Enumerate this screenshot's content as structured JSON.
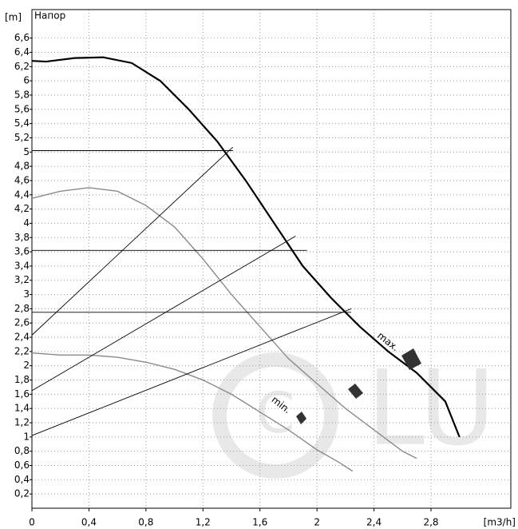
{
  "chart_data": {
    "type": "line",
    "title": "Напор",
    "y_label": "[m]",
    "x_label": "[m3/h]",
    "watermark": "LU",
    "annotations": [
      "max.",
      "min."
    ],
    "xlim": [
      0,
      3.36
    ],
    "ylim": [
      0,
      7
    ],
    "grid": true,
    "xticks": [
      0,
      {
        "value": 0.4,
        "label": "0,4"
      },
      {
        "value": 0.8,
        "label": "0,8"
      },
      {
        "value": 1.2,
        "label": "1,2"
      },
      {
        "value": 1.6,
        "label": "1,6"
      },
      2,
      {
        "value": 2.4,
        "label": "2,4"
      },
      {
        "value": 2.8,
        "label": "2,8"
      }
    ],
    "yticks": [
      {
        "value": 0.2,
        "label": "0,2"
      },
      {
        "value": 0.4,
        "label": "0,4"
      },
      {
        "value": 0.6,
        "label": "0,6"
      },
      {
        "value": 0.8,
        "label": "0,8"
      },
      1,
      {
        "value": 1.2,
        "label": "1,2"
      },
      {
        "value": 1.4,
        "label": "1,4"
      },
      {
        "value": 1.6,
        "label": "1,6"
      },
      {
        "value": 1.8,
        "label": "1,8"
      },
      2,
      {
        "value": 2.2,
        "label": "2,2"
      },
      {
        "value": 2.4,
        "label": "2,4"
      },
      {
        "value": 2.6,
        "label": "2,6"
      },
      {
        "value": 2.8,
        "label": "2,8"
      },
      3,
      {
        "value": 3.2,
        "label": "3,2"
      },
      {
        "value": 3.4,
        "label": "3,4"
      },
      {
        "value": 3.6,
        "label": "3,6"
      },
      {
        "value": 3.8,
        "label": "3,8"
      },
      4,
      {
        "value": 4.2,
        "label": "4,2"
      },
      {
        "value": 4.4,
        "label": "4,4"
      },
      {
        "value": 4.6,
        "label": "4,6"
      },
      {
        "value": 4.8,
        "label": "4,8"
      },
      5,
      {
        "value": 5.2,
        "label": "5,2"
      },
      {
        "value": 5.4,
        "label": "5,4"
      },
      {
        "value": 5.6,
        "label": "5,6"
      },
      {
        "value": 5.8,
        "label": "5,8"
      },
      6,
      {
        "value": 6.2,
        "label": "6,2"
      },
      {
        "value": 6.4,
        "label": "6,4"
      },
      {
        "value": 6.6,
        "label": "6,6"
      }
    ],
    "series": [
      {
        "color": "#000000",
        "width": 2.2,
        "x": [
          0,
          0.1,
          0.3,
          0.5,
          0.7,
          0.9,
          1.1,
          1.3,
          1.5,
          1.7,
          1.9,
          2.1,
          2.3,
          2.5,
          2.7,
          2.9,
          3.0
        ],
        "values": [
          6.28,
          6.27,
          6.32,
          6.33,
          6.25,
          6.0,
          5.6,
          5.15,
          4.6,
          4.0,
          3.4,
          2.95,
          2.55,
          2.2,
          1.9,
          1.5,
          1.0
        ]
      },
      {
        "color": "#8a8a8a",
        "width": 1.4,
        "x": [
          0,
          0.2,
          0.4,
          0.6,
          0.8,
          1.0,
          1.2,
          1.4,
          1.6,
          1.8,
          2.0,
          2.2,
          2.4,
          2.6,
          2.7
        ],
        "values": [
          4.35,
          4.45,
          4.5,
          4.45,
          4.25,
          3.95,
          3.5,
          3.0,
          2.55,
          2.1,
          1.75,
          1.4,
          1.1,
          0.8,
          0.7
        ]
      },
      {
        "color": "#8a8a8a",
        "width": 1.4,
        "x": [
          0,
          0.2,
          0.4,
          0.6,
          0.8,
          1.0,
          1.2,
          1.4,
          1.6,
          1.8,
          2.0,
          2.15,
          2.25
        ],
        "values": [
          2.18,
          2.15,
          2.15,
          2.12,
          2.05,
          1.95,
          1.8,
          1.6,
          1.35,
          1.1,
          0.82,
          0.65,
          0.52
        ]
      },
      {
        "color": "#000000",
        "width": 0.9,
        "x": [
          0,
          1.41
        ],
        "values": [
          2.43,
          5.07
        ]
      },
      {
        "color": "#000000",
        "width": 0.9,
        "x": [
          0,
          1.85
        ],
        "values": [
          1.65,
          3.82
        ]
      },
      {
        "color": "#000000",
        "width": 0.9,
        "x": [
          0,
          2.24
        ],
        "values": [
          1.02,
          2.8
        ]
      },
      {
        "color": "#000000",
        "width": 0.9,
        "x": [
          0,
          1.41
        ],
        "values": [
          5.02,
          5.02
        ]
      },
      {
        "color": "#000000",
        "width": 0.9,
        "x": [
          0,
          1.93
        ],
        "values": [
          3.62,
          3.62
        ]
      },
      {
        "color": "#000000",
        "width": 0.9,
        "x": [
          0,
          2.24
        ],
        "values": [
          2.75,
          2.75
        ]
      }
    ]
  }
}
